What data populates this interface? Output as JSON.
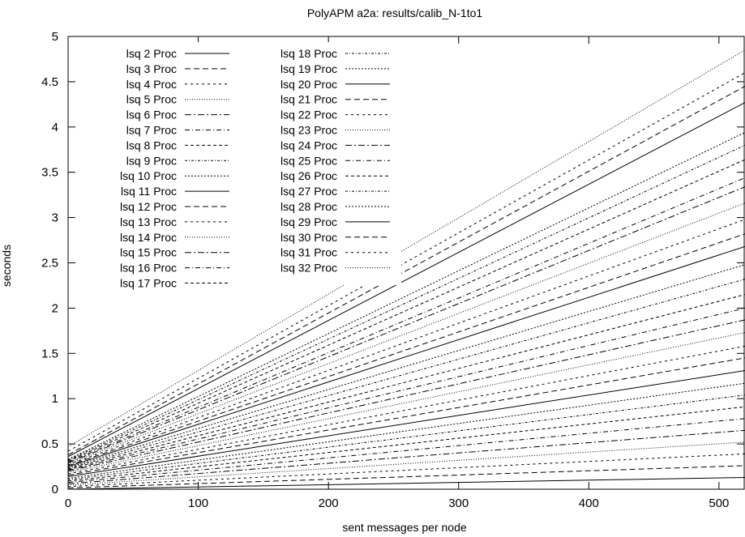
{
  "chart_data": {
    "type": "line",
    "title": "PolyAPM a2a: results/calib_N-1to1",
    "xlabel": "sent messages per node",
    "ylabel": "seconds",
    "xlim": [
      0,
      520
    ],
    "ylim": [
      0,
      5
    ],
    "x_ticks": [
      "0",
      "100",
      "200",
      "300",
      "400",
      "500"
    ],
    "y_ticks": [
      "0",
      "0.5",
      "1",
      "1.5",
      "2",
      "2.5",
      "3",
      "3.5",
      "4",
      "4.5",
      "5"
    ],
    "grid": false,
    "legend_position": "top-left",
    "x": [
      0,
      520
    ],
    "series": [
      {
        "name": "lsq 2 Proc",
        "values": [
          0.0,
          0.13
        ]
      },
      {
        "name": "lsq 3 Proc",
        "values": [
          0.015,
          0.26
        ]
      },
      {
        "name": "lsq 4 Proc",
        "values": [
          0.03,
          0.39
        ]
      },
      {
        "name": "lsq 5 Proc",
        "values": [
          0.045,
          0.52
        ]
      },
      {
        "name": "lsq 6 Proc",
        "values": [
          0.06,
          0.65
        ]
      },
      {
        "name": "lsq 7 Proc",
        "values": [
          0.075,
          0.78
        ]
      },
      {
        "name": "lsq 8 Proc",
        "values": [
          0.09,
          0.91
        ]
      },
      {
        "name": "lsq 9 Proc",
        "values": [
          0.105,
          1.04
        ]
      },
      {
        "name": "lsq 10 Proc",
        "values": [
          0.12,
          1.17
        ]
      },
      {
        "name": "lsq 11 Proc",
        "values": [
          0.14,
          1.31
        ]
      },
      {
        "name": "lsq 12 Proc",
        "values": [
          0.155,
          1.45
        ]
      },
      {
        "name": "lsq 13 Proc",
        "values": [
          0.17,
          1.58
        ]
      },
      {
        "name": "lsq 14 Proc",
        "values": [
          0.185,
          1.73
        ]
      },
      {
        "name": "lsq 15 Proc",
        "values": [
          0.2,
          1.87
        ]
      },
      {
        "name": "lsq 16 Proc",
        "values": [
          0.21,
          2.0
        ]
      },
      {
        "name": "lsq 17 Proc",
        "values": [
          0.22,
          2.15
        ]
      },
      {
        "name": "lsq 18 Proc",
        "values": [
          0.23,
          2.32
        ]
      },
      {
        "name": "lsq 19 Proc",
        "values": [
          0.24,
          2.48
        ]
      },
      {
        "name": "lsq 20 Proc",
        "values": [
          0.25,
          2.68
        ]
      },
      {
        "name": "lsq 21 Proc",
        "values": [
          0.26,
          2.82
        ]
      },
      {
        "name": "lsq 22 Proc",
        "values": [
          0.27,
          2.98
        ]
      },
      {
        "name": "lsq 23 Proc",
        "values": [
          0.28,
          3.16
        ]
      },
      {
        "name": "lsq 24 Proc",
        "values": [
          0.29,
          3.34
        ]
      },
      {
        "name": "lsq 25 Proc",
        "values": [
          0.3,
          3.44
        ]
      },
      {
        "name": "lsq 26 Proc",
        "values": [
          0.31,
          3.64
        ]
      },
      {
        "name": "lsq 27 Proc",
        "values": [
          0.32,
          3.8
        ]
      },
      {
        "name": "lsq 28 Proc",
        "values": [
          0.33,
          3.94
        ]
      },
      {
        "name": "lsq 29 Proc",
        "values": [
          0.36,
          4.27
        ]
      },
      {
        "name": "lsq 30 Proc",
        "values": [
          0.38,
          4.45
        ]
      },
      {
        "name": "lsq 31 Proc",
        "values": [
          0.42,
          4.6
        ]
      },
      {
        "name": "lsq 32 Proc",
        "values": [
          0.47,
          4.85
        ]
      }
    ]
  }
}
